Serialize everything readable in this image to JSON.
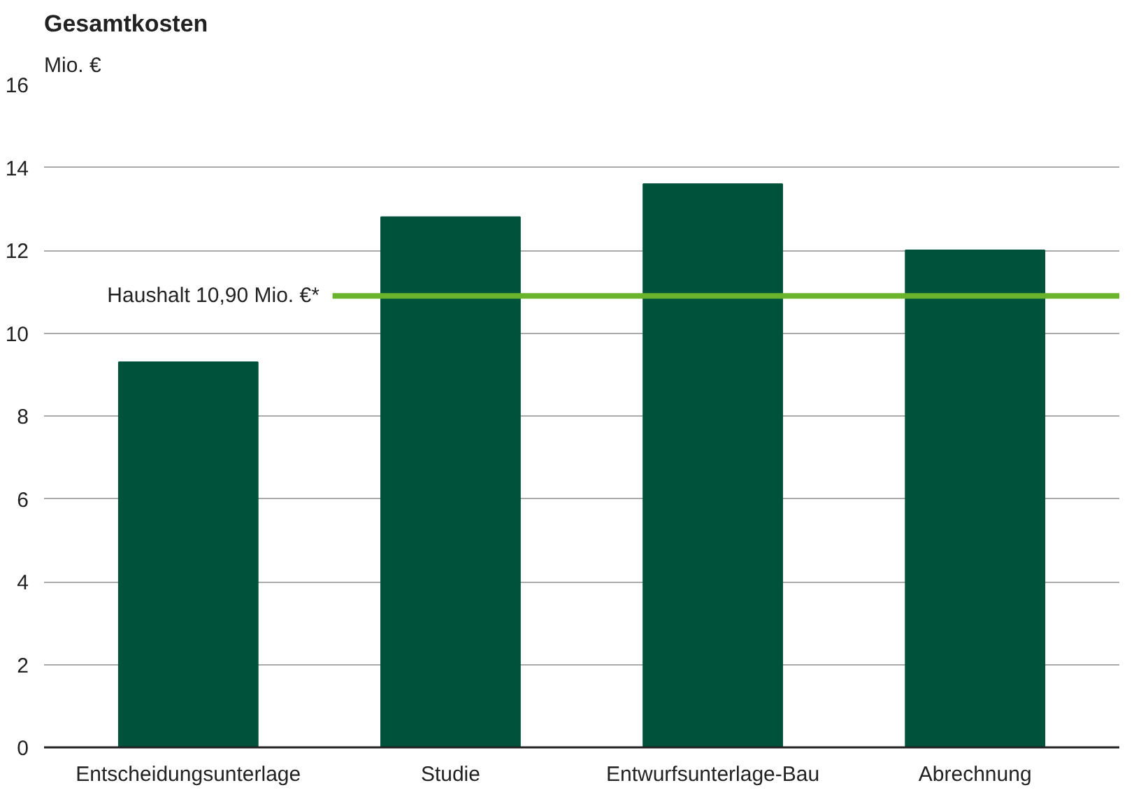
{
  "chart_data": {
    "type": "bar",
    "title": "Gesamtkosten",
    "ylabel": "Mio. €",
    "categories": [
      "Entscheidungsunterlage",
      "Studie",
      "Entwurfsunterlage-Bau",
      "Abrechnung"
    ],
    "values": [
      9.3,
      12.8,
      13.6,
      12.0
    ],
    "color": "#00533a",
    "ylim": [
      0,
      16
    ],
    "yticks": [
      0,
      2,
      4,
      6,
      8,
      10,
      12,
      14,
      16
    ],
    "grid": "y",
    "ref_lines": [
      {
        "axis": "y",
        "value": 10.9,
        "label": "Haushalt 10,90 Mio. €*",
        "color": "#6ab42d",
        "line_style": "solid"
      }
    ]
  }
}
